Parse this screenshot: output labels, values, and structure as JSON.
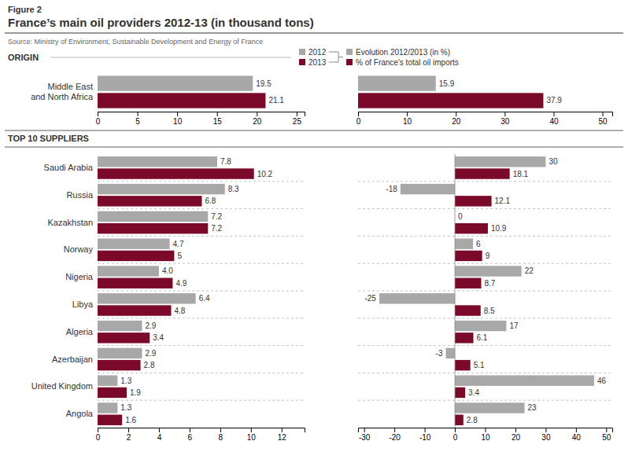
{
  "chart_data": [
    {
      "type": "bar",
      "orientation": "horizontal",
      "subtitle": "Figure 2",
      "title": "France’s main oil providers 2012-13 (in thousand tons)",
      "annotations": [
        "Source: Ministry of Environment, Sustainable Development and Energy of France",
        "ORIGIN"
      ],
      "categories": [
        "Middle East\nand North Africa"
      ],
      "series": [
        {
          "name": "2012",
          "color": "#a8a8a8",
          "values": [
            19.5
          ]
        },
        {
          "name": "2013",
          "color": "#7b0a2a",
          "values": [
            21.1
          ]
        }
      ],
      "xlim": [
        0,
        26
      ],
      "xticks": [
        0,
        5,
        10,
        15,
        20,
        25
      ],
      "data_labels": true,
      "legend": "top"
    },
    {
      "type": "bar",
      "orientation": "horizontal",
      "categories": [
        null
      ],
      "series": [
        {
          "name": "Evolution 2012/2013 (in %)",
          "color": "#a8a8a8",
          "values": [
            15.9
          ]
        },
        {
          "name": "% of France's total oil imports",
          "color": "#7b0a2a",
          "values": [
            37.9
          ]
        }
      ],
      "xlim": [
        0,
        52
      ],
      "xticks": [
        0,
        10,
        20,
        30,
        40,
        50
      ],
      "data_labels": true,
      "legend": "top"
    },
    {
      "type": "bar",
      "orientation": "horizontal",
      "annotations": [
        "TOP 10 SUPPLIERS"
      ],
      "categories": [
        "Saudi Arabia",
        "Russia",
        "Kazakhstan",
        "Norway",
        "Nigeria",
        "Libya",
        "Algeria",
        "Azerbaijan",
        "United Kingdom",
        "Angola"
      ],
      "series": [
        {
          "color": "#a8a8a8",
          "values": [
            7.8,
            8.3,
            7.2,
            4.7,
            4.0,
            6.4,
            2.9,
            2.9,
            1.3,
            1.3
          ],
          "value_labels": [
            "7.8",
            "8.3",
            "7.2",
            "4.7",
            "4.0",
            "6.4",
            "2.9",
            "2.9",
            "1.3",
            "1.3"
          ]
        },
        {
          "color": "#7b0a2a",
          "values": [
            10.2,
            6.8,
            7.2,
            5.0,
            4.9,
            4.8,
            3.4,
            2.8,
            1.9,
            1.6
          ],
          "value_labels": [
            "10.2",
            "6.8",
            "7.2",
            "5",
            "4.9",
            "4.8",
            "3.4",
            "2.8",
            "1.9",
            "1.6"
          ]
        }
      ],
      "xlim": [
        0,
        13.5
      ],
      "xticks": [
        0,
        2,
        4,
        6,
        8,
        10,
        12
      ],
      "data_labels": true
    },
    {
      "type": "bar",
      "orientation": "horizontal",
      "categories": [
        null,
        null,
        null,
        null,
        null,
        null,
        null,
        null,
        null,
        null
      ],
      "series": [
        {
          "color": "#a8a8a8",
          "values": [
            30,
            -18,
            0,
            6,
            22,
            -25,
            17,
            -3,
            46,
            23
          ]
        },
        {
          "color": "#7b0a2a",
          "values": [
            18.1,
            12.1,
            10.9,
            9,
            8.7,
            8.5,
            6.1,
            5.1,
            3.4,
            2.8
          ]
        }
      ],
      "xlim": [
        -32,
        52
      ],
      "xticks": [
        -30,
        -20,
        -10,
        0,
        10,
        20,
        30,
        40,
        50
      ],
      "data_labels": true
    }
  ]
}
